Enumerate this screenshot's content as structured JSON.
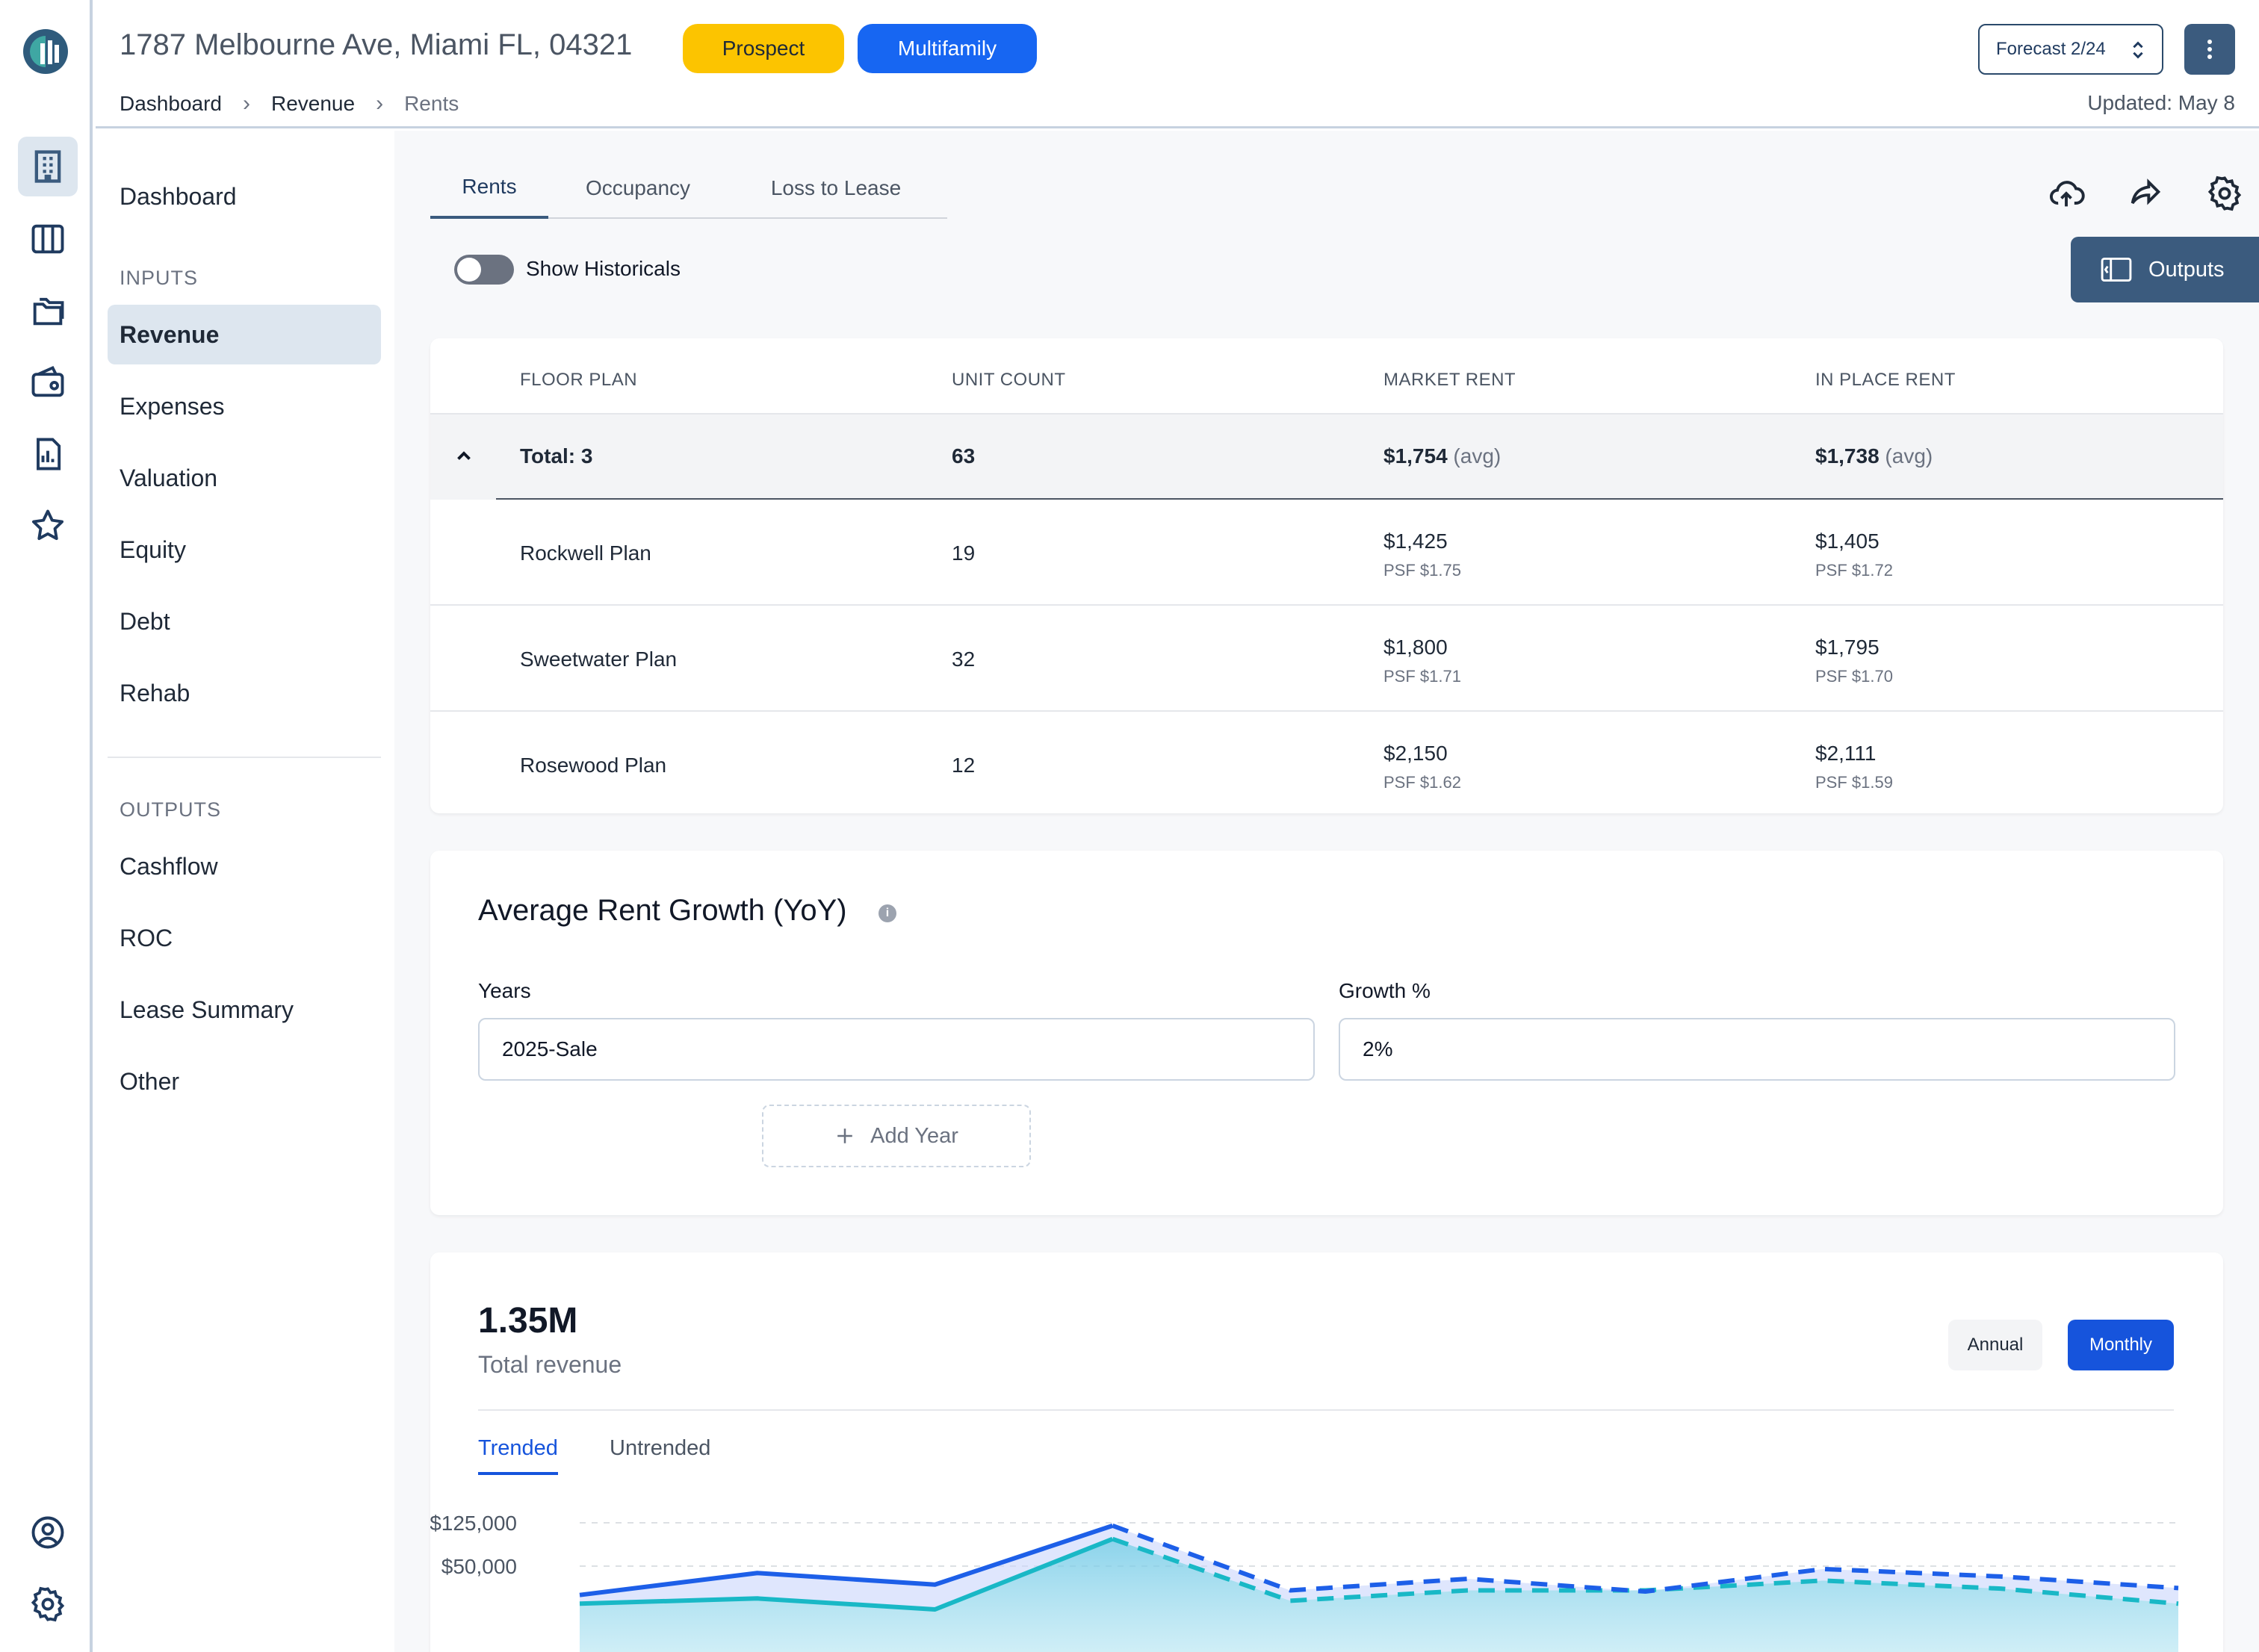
{
  "header": {
    "address": "1787 Melbourne Ave, Miami FL, 04321",
    "badges": [
      "Prospect",
      "Multifamily"
    ],
    "breadcrumb": [
      "Dashboard",
      "Revenue",
      "Rents"
    ],
    "forecast": "Forecast 2/24",
    "updated": "Updated: May 8"
  },
  "rail": {
    "icons": [
      "logo-icon",
      "building-icon",
      "columns-icon",
      "folders-icon",
      "wallet-icon",
      "report-icon",
      "star-icon",
      "user-circle-icon",
      "gear-icon"
    ]
  },
  "sidebar": {
    "top_item": "Dashboard",
    "inputs_heading": "INPUTS",
    "inputs": [
      "Revenue",
      "Expenses",
      "Valuation",
      "Equity",
      "Debt",
      "Rehab"
    ],
    "outputs_heading": "OUTPUTS",
    "outputs": [
      "Cashflow",
      "ROC",
      "Lease Summary",
      "Other"
    ]
  },
  "main": {
    "tabs": [
      "Rents",
      "Occupancy",
      "Loss to Lease"
    ],
    "toggle_label": "Show Historicals",
    "toggle_on": false,
    "outputs_button": "Outputs"
  },
  "rent_table": {
    "columns": [
      "FLOOR PLAN",
      "UNIT COUNT",
      "MARKET RENT",
      "IN PLACE RENT"
    ],
    "total": {
      "label": "Total: 3",
      "units": "63",
      "market": "$1,754",
      "market_suffix": "(avg)",
      "inplace": "$1,738",
      "inplace_suffix": "(avg)"
    },
    "rows": [
      {
        "plan": "Rockwell Plan",
        "units": "19",
        "market": "$1,425",
        "market_psf": "PSF $1.75",
        "inplace": "$1,405",
        "inplace_psf": "PSF $1.72"
      },
      {
        "plan": "Sweetwater Plan",
        "units": "32",
        "market": "$1,800",
        "market_psf": "PSF $1.71",
        "inplace": "$1,795",
        "inplace_psf": "PSF $1.70"
      },
      {
        "plan": "Rosewood Plan",
        "units": "12",
        "market": "$2,150",
        "market_psf": "PSF $1.62",
        "inplace": "$2,111",
        "inplace_psf": "PSF $1.59"
      }
    ]
  },
  "growth": {
    "title": "Average Rent Growth (YoY)",
    "years_label": "Years",
    "years_value": "2025-Sale",
    "growth_label": "Growth %",
    "growth_value": "2%",
    "add_year": "Add Year"
  },
  "revenue": {
    "value": "1.35M",
    "label": "Total revenue",
    "period_options": [
      "Annual",
      "Monthly"
    ],
    "period_selected": "Monthly",
    "subtabs": [
      "Trended",
      "Untrended"
    ],
    "subtab_selected": "Trended"
  },
  "chart_data": {
    "type": "line",
    "y_ticks": [
      "$125,000",
      "$50,000"
    ],
    "colors": {
      "blue": "#1d5fe8",
      "teal": "#19b8c6"
    },
    "series": [
      {
        "values": [
          0,
          38000,
          18000,
          120000,
          8000,
          28000,
          6000,
          45000,
          32000,
          12000
        ],
        "dashed_after": 3
      },
      {
        "values": [
          -15000,
          -6000,
          -25000,
          97000,
          -10000,
          8000,
          8000,
          25000,
          11000,
          -15000
        ],
        "dashed_after": 3
      }
    ],
    "ylim": [
      -25000,
      140000
    ],
    "grid": true
  }
}
